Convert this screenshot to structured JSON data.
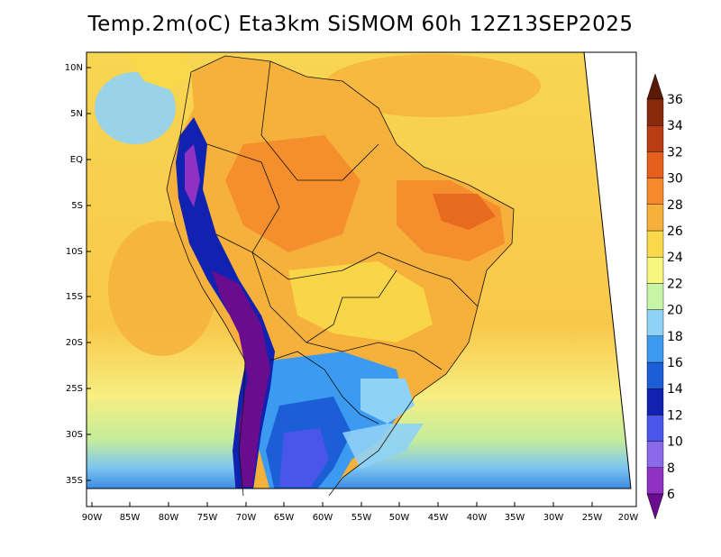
{
  "title": "Temp.2m(oC) Eta3km SiSMOM 60h 12Z13SEP2025",
  "map": {
    "lat_labels": [
      "10N",
      "5N",
      "EQ",
      "5S",
      "10S",
      "15S",
      "20S",
      "25S",
      "30S",
      "35S"
    ],
    "lon_labels": [
      "90W",
      "85W",
      "80W",
      "75W",
      "70W",
      "65W",
      "60W",
      "55W",
      "50W",
      "45W",
      "40W",
      "35W",
      "30W",
      "25W",
      "20W"
    ]
  },
  "colorbar": {
    "levels": [
      "6",
      "8",
      "10",
      "12",
      "14",
      "16",
      "18",
      "20",
      "22",
      "24",
      "26",
      "28",
      "30",
      "32",
      "34",
      "36"
    ],
    "colors": [
      "#6a0c8e",
      "#8f32c4",
      "#8a6ae8",
      "#4a56ea",
      "#1222b0",
      "#1c5ed6",
      "#3c9af0",
      "#8fd2f7",
      "#c6f5a6",
      "#f7f67e",
      "#f9d949",
      "#f6b13c",
      "#f58a2c",
      "#e5601c",
      "#b83c14",
      "#8a2a0c",
      "#5a1a08"
    ],
    "below_color": "#6a0c8e",
    "above_color": "#5a1a08"
  }
}
